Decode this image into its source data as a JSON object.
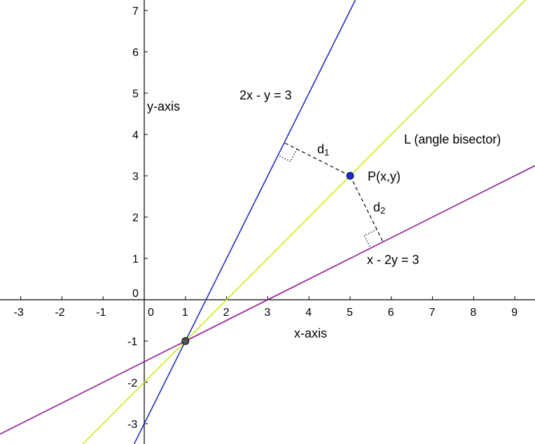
{
  "figure": {
    "x_axis_label": "x-axis",
    "y_axis_label": "y-axis",
    "x_ticks": [
      "-3",
      "-2",
      "-1",
      "0",
      "1",
      "2",
      "3",
      "4",
      "5",
      "6",
      "7",
      "8",
      "9"
    ],
    "y_ticks": [
      "-3",
      "-2",
      "-1",
      "0",
      "1",
      "2",
      "3",
      "4",
      "5",
      "6",
      "7"
    ],
    "x_range": [
      -3.5,
      9.5
    ],
    "y_range": [
      -3.5,
      7.3
    ],
    "lines": [
      {
        "equation": "2x - y = 3",
        "slope": 2,
        "intercept": -3,
        "color": "#1f2fc6"
      },
      {
        "equation": "x - 2y = 3",
        "slope": 0.5,
        "intercept": -1.5,
        "color": "#8e1a8e"
      },
      {
        "equation": "L (angle bisector)",
        "slope": 1,
        "intercept": -2,
        "color": "#c9ec1c"
      }
    ],
    "point_p": {
      "label": "P(x,y)",
      "x": 5,
      "y": 3,
      "color": "#1a2ccc"
    },
    "intersection": {
      "x": 1,
      "y": -1,
      "color": "#555555"
    },
    "distance_labels": {
      "d1_main": "d",
      "d1_sub": "1",
      "d2_main": "d",
      "d2_sub": "2"
    }
  }
}
